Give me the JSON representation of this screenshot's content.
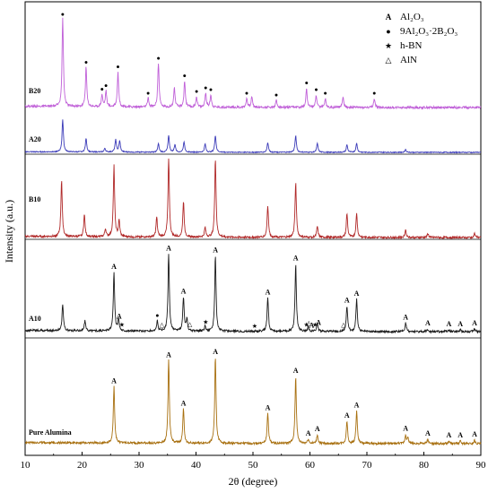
{
  "chart_data": {
    "type": "line",
    "xlabel": "2θ (degree)",
    "ylabel": "Intensity (a.u.)",
    "xlim": [
      10,
      90
    ],
    "x_ticks": [
      10,
      20,
      30,
      40,
      50,
      60,
      70,
      80,
      90
    ],
    "grid": false,
    "legend_position": "top-right",
    "legend": [
      {
        "symbol": "A",
        "label": "Al₂O₃"
      },
      {
        "symbol": "●",
        "label": "9Al₂O₃·2B₂O₃"
      },
      {
        "symbol": "★",
        "label": "h-BN"
      },
      {
        "symbol": "△",
        "label": "AlN"
      }
    ],
    "series": [
      {
        "name": "B20",
        "color": "#c060d8",
        "peaks": [
          [
            16.6,
            1.0
          ],
          [
            20.7,
            0.45
          ],
          [
            23.5,
            0.14
          ],
          [
            24.2,
            0.18
          ],
          [
            26.3,
            0.4
          ],
          [
            31.6,
            0.1
          ],
          [
            33.4,
            0.5
          ],
          [
            36.2,
            0.22
          ],
          [
            38.0,
            0.3
          ],
          [
            40.1,
            0.12
          ],
          [
            41.7,
            0.16
          ],
          [
            42.6,
            0.14
          ],
          [
            48.9,
            0.1
          ],
          [
            49.8,
            0.12
          ],
          [
            54.1,
            0.08
          ],
          [
            59.4,
            0.22
          ],
          [
            61.1,
            0.14
          ],
          [
            62.7,
            0.1
          ],
          [
            65.8,
            0.12
          ],
          [
            71.3,
            0.1
          ]
        ]
      },
      {
        "name": "A20",
        "color": "#3a3ab8",
        "peaks": [
          [
            16.6,
            0.85
          ],
          [
            20.7,
            0.36
          ],
          [
            24.0,
            0.1
          ],
          [
            25.9,
            0.34
          ],
          [
            26.6,
            0.3
          ],
          [
            33.4,
            0.22
          ],
          [
            35.2,
            0.45
          ],
          [
            36.3,
            0.2
          ],
          [
            37.9,
            0.28
          ],
          [
            41.6,
            0.22
          ],
          [
            43.4,
            0.45
          ],
          [
            52.6,
            0.26
          ],
          [
            57.5,
            0.45
          ],
          [
            61.3,
            0.24
          ],
          [
            66.5,
            0.2
          ],
          [
            68.2,
            0.24
          ],
          [
            76.8,
            0.08
          ]
        ]
      },
      {
        "name": "B10",
        "color": "#b02828",
        "peaks": [
          [
            16.4,
            0.72
          ],
          [
            20.4,
            0.28
          ],
          [
            24.1,
            0.1
          ],
          [
            25.6,
            0.9
          ],
          [
            26.5,
            0.2
          ],
          [
            33.1,
            0.25
          ],
          [
            35.2,
            1.0
          ],
          [
            37.8,
            0.45
          ],
          [
            41.6,
            0.12
          ],
          [
            43.4,
            1.0
          ],
          [
            52.6,
            0.4
          ],
          [
            57.5,
            0.7
          ],
          [
            61.3,
            0.14
          ],
          [
            66.5,
            0.3
          ],
          [
            68.2,
            0.3
          ],
          [
            76.8,
            0.1
          ],
          [
            80.7,
            0.05
          ],
          [
            88.9,
            0.05
          ]
        ]
      },
      {
        "name": "A10",
        "color": "#1a1a1a",
        "peaks": [
          [
            16.6,
            0.32
          ],
          [
            20.5,
            0.12
          ],
          [
            25.6,
            0.7
          ],
          [
            26.4,
            0.14
          ],
          [
            33.2,
            0.12
          ],
          [
            35.2,
            0.92
          ],
          [
            37.8,
            0.4
          ],
          [
            38.4,
            0.14
          ],
          [
            41.6,
            0.06
          ],
          [
            43.4,
            0.9
          ],
          [
            52.6,
            0.4
          ],
          [
            57.5,
            0.8
          ],
          [
            59.7,
            0.05
          ],
          [
            61.3,
            0.1
          ],
          [
            66.5,
            0.3
          ],
          [
            68.2,
            0.38
          ],
          [
            76.8,
            0.1
          ],
          [
            80.7,
            0.03
          ],
          [
            84.4,
            0.02
          ],
          [
            86.4,
            0.02
          ],
          [
            88.9,
            0.03
          ]
        ]
      },
      {
        "name": "Pure Alumina",
        "color": "#a87010",
        "peaks": [
          [
            25.6,
            0.66
          ],
          [
            35.2,
            0.96
          ],
          [
            37.8,
            0.4
          ],
          [
            43.4,
            1.0
          ],
          [
            52.6,
            0.35
          ],
          [
            57.5,
            0.78
          ],
          [
            59.7,
            0.05
          ],
          [
            61.3,
            0.1
          ],
          [
            66.5,
            0.26
          ],
          [
            68.2,
            0.38
          ],
          [
            76.8,
            0.1
          ],
          [
            77.2,
            0.06
          ],
          [
            80.7,
            0.05
          ],
          [
            84.4,
            0.03
          ],
          [
            86.4,
            0.03
          ],
          [
            88.9,
            0.04
          ]
        ]
      }
    ],
    "annotations": [
      {
        "series": "B20",
        "symbol": "●",
        "x": [
          16.6,
          20.7,
          23.5,
          24.2,
          26.3,
          31.6,
          33.4,
          38.0,
          40.1,
          41.7,
          42.6,
          48.9,
          54.1,
          59.4,
          61.1,
          62.7,
          71.3
        ]
      },
      {
        "series": "A10",
        "symbol": "A",
        "x": [
          25.6,
          26.5,
          35.2,
          37.8,
          43.4,
          52.6,
          57.5,
          60.3,
          61.5,
          66.5,
          68.2,
          76.8,
          80.7,
          84.4,
          86.4,
          88.9
        ]
      },
      {
        "series": "A10",
        "symbol": "★",
        "x": [
          27.0,
          41.7,
          50.3,
          59.4,
          60.9
        ]
      },
      {
        "series": "A10",
        "symbol": "●",
        "x": [
          33.2
        ]
      },
      {
        "series": "A10",
        "symbol": "△",
        "x": [
          34.0,
          38.9,
          59.8,
          65.9
        ]
      },
      {
        "series": "Pure Alumina",
        "symbol": "A",
        "x": [
          25.6,
          35.2,
          37.8,
          43.4,
          52.6,
          57.5,
          59.7,
          61.3,
          66.5,
          68.2,
          76.8,
          80.7,
          84.4,
          86.4,
          88.9
        ]
      }
    ]
  }
}
